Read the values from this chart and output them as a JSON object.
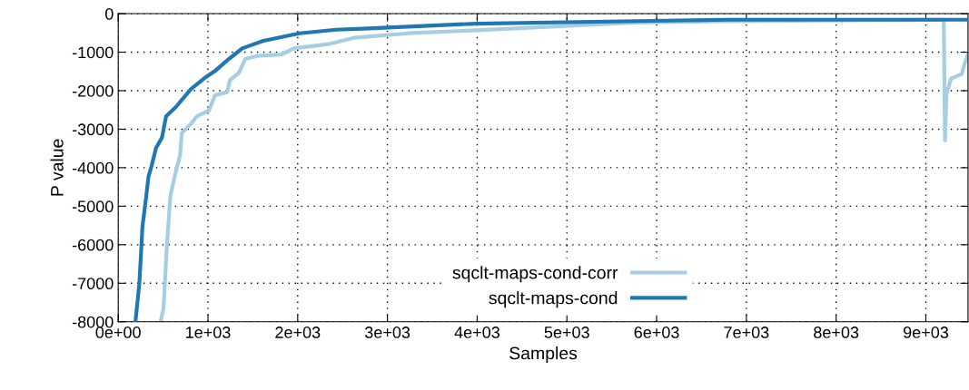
{
  "chart_data": {
    "type": "line",
    "xlabel": "Samples",
    "ylabel": "P value",
    "xlim": [
      0,
      9470
    ],
    "ylim": [
      -8000,
      0
    ],
    "xticks": [
      {
        "value": 0,
        "label": "0e+00"
      },
      {
        "value": 1000,
        "label": "1e+03"
      },
      {
        "value": 2000,
        "label": "2e+03"
      },
      {
        "value": 3000,
        "label": "3e+03"
      },
      {
        "value": 4000,
        "label": "4e+03"
      },
      {
        "value": 5000,
        "label": "5e+03"
      },
      {
        "value": 6000,
        "label": "6e+03"
      },
      {
        "value": 7000,
        "label": "7e+03"
      },
      {
        "value": 8000,
        "label": "8e+03"
      },
      {
        "value": 9000,
        "label": "9e+03"
      }
    ],
    "yticks": [
      0,
      -1000,
      -2000,
      -3000,
      -4000,
      -5000,
      -6000,
      -7000,
      -8000
    ],
    "grid": true,
    "legend": "bottom",
    "line_style": "solid",
    "marker": "none",
    "series": [
      {
        "name": "sqclt-maps-cond-corr",
        "color": "#a6cee3",
        "x": [
          472,
          505,
          539,
          580,
          640,
          691,
          708,
          809,
          876,
          1011,
          1078,
          1213,
          1246,
          1347,
          1415,
          1549,
          1819,
          1954,
          2358,
          2627,
          3234,
          3992,
          5761,
          6771,
          9200,
          9213,
          9230,
          9281,
          9399,
          9433,
          9467
        ],
        "values": [
          -8000,
          -7647,
          -6157,
          -4745,
          -4118,
          -3647,
          -3098,
          -2863,
          -2667,
          -2510,
          -2118,
          -2039,
          -1725,
          -1529,
          -1176,
          -1098,
          -1059,
          -902,
          -784,
          -627,
          -510,
          -431,
          -235,
          -196,
          -157,
          -3294,
          -2078,
          -1686,
          -1569,
          -1294,
          -1059
        ]
      },
      {
        "name": "sqclt-maps-cond",
        "color": "#1f78b4",
        "x": [
          192,
          235,
          253,
          270,
          310,
          337,
          371,
          421,
          488,
          533,
          640,
          809,
          977,
          1078,
          1213,
          1381,
          1617,
          2021,
          2425,
          2728,
          3234,
          3992,
          6771,
          9470
        ],
        "values": [
          -8000,
          -7019,
          -6275,
          -5529,
          -4784,
          -4235,
          -3961,
          -3490,
          -3216,
          -2667,
          -2431,
          -1961,
          -1647,
          -1490,
          -1216,
          -902,
          -706,
          -510,
          -416,
          -392,
          -337,
          -259,
          -157,
          -157
        ]
      }
    ]
  }
}
